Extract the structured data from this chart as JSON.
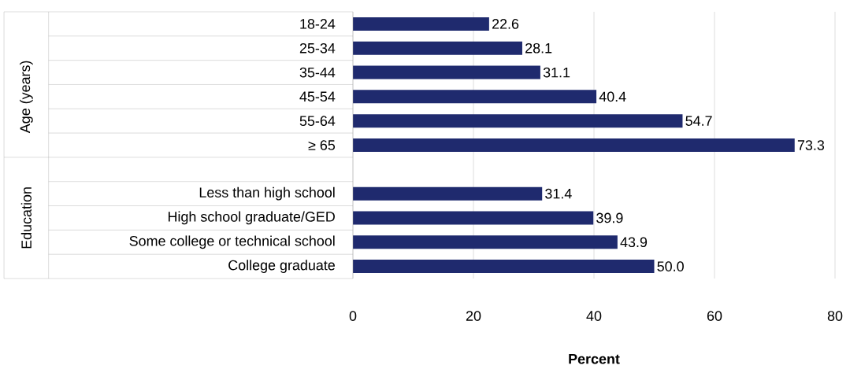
{
  "chart_data": {
    "type": "bar",
    "orientation": "horizontal",
    "xlabel": "Percent",
    "categories": [
      "18-24",
      "25-34",
      "35-44",
      "45-54",
      "55-64",
      "≥ 65",
      null,
      "Less than high school",
      "High school graduate/GED",
      "Some college or technical school",
      "College graduate"
    ],
    "values": [
      22.6,
      28.1,
      31.1,
      40.4,
      54.7,
      73.3,
      null,
      31.4,
      39.9,
      43.9,
      50.0
    ],
    "value_labels": [
      "22.6",
      "28.1",
      "31.1",
      "40.4",
      "54.7",
      "73.3",
      null,
      "31.4",
      "39.9",
      "43.9",
      "50.0"
    ],
    "color": "#1f2a6e",
    "xlim": [
      0,
      80
    ],
    "xticks": [
      0,
      20,
      40,
      60,
      80
    ],
    "grid": "x",
    "annotations": [
      "Age (years)",
      "Education"
    ]
  }
}
